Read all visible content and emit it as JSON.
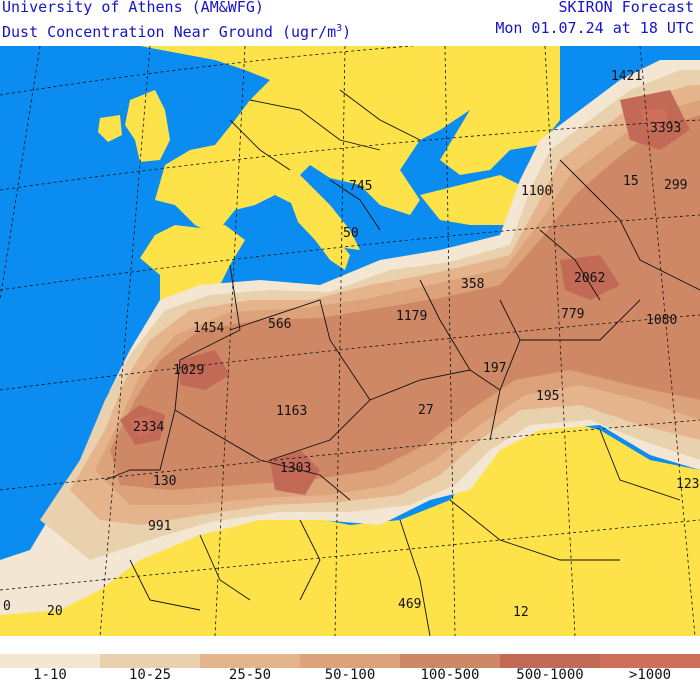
{
  "header": {
    "left_line1": "University of Athens (AM&WFG)",
    "left_line2": "Dust Concentration Near Ground (ugr/m",
    "left_line2_sup": "3",
    "left_line2_end": ")",
    "right_line1": "SKIRON Forecast",
    "right_line2": "Mon 01.07.24 at 18 UTC"
  },
  "colors": {
    "sea": "#0a8cf0",
    "land": "#fde24a",
    "boundary": "#111111",
    "c1": "#f3e6d2",
    "c2": "#ead1ad",
    "c3": "#e5b48c",
    "c4": "#dca27a",
    "c5": "#cf8866",
    "c6": "#c26a55",
    "c7": "#cf6f5b"
  },
  "legend": {
    "labels": [
      "1-10",
      "10-25",
      "25-50",
      "50-100",
      "100-500",
      "500-1000",
      ">1000"
    ],
    "colors": [
      "#f3e6d2",
      "#ead1ad",
      "#e5b48c",
      "#dca27a",
      "#cf8866",
      "#c26a55",
      "#cf6f5b"
    ]
  },
  "values": [
    {
      "text": "1421"
    },
    {
      "text": "3393"
    },
    {
      "text": "15"
    },
    {
      "text": "299"
    },
    {
      "text": "1100"
    },
    {
      "text": "745"
    },
    {
      "text": "50"
    },
    {
      "text": "2062"
    },
    {
      "text": "358"
    },
    {
      "text": "779"
    },
    {
      "text": "1080"
    },
    {
      "text": "1454"
    },
    {
      "text": "566"
    },
    {
      "text": "1179"
    },
    {
      "text": "1029"
    },
    {
      "text": "197"
    },
    {
      "text": "195"
    },
    {
      "text": "1163"
    },
    {
      "text": "27"
    },
    {
      "text": "2334"
    },
    {
      "text": "1303"
    },
    {
      "text": "123"
    },
    {
      "text": "130"
    },
    {
      "text": "991"
    },
    {
      "text": "0"
    },
    {
      "text": "20"
    },
    {
      "text": "469"
    },
    {
      "text": "12"
    }
  ]
}
